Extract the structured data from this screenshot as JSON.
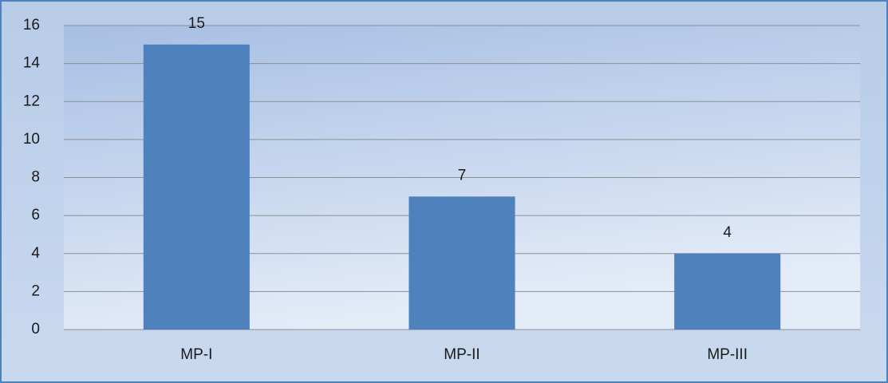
{
  "chart_data": {
    "type": "bar",
    "categories": [
      "MP-I",
      "MP-II",
      "MP-III"
    ],
    "values": [
      15,
      7,
      4
    ],
    "color": "#4f81bd",
    "ylim": [
      0,
      16
    ],
    "yticks": [
      0,
      2,
      4,
      6,
      8,
      10,
      12,
      14,
      16
    ],
    "grid": true
  }
}
